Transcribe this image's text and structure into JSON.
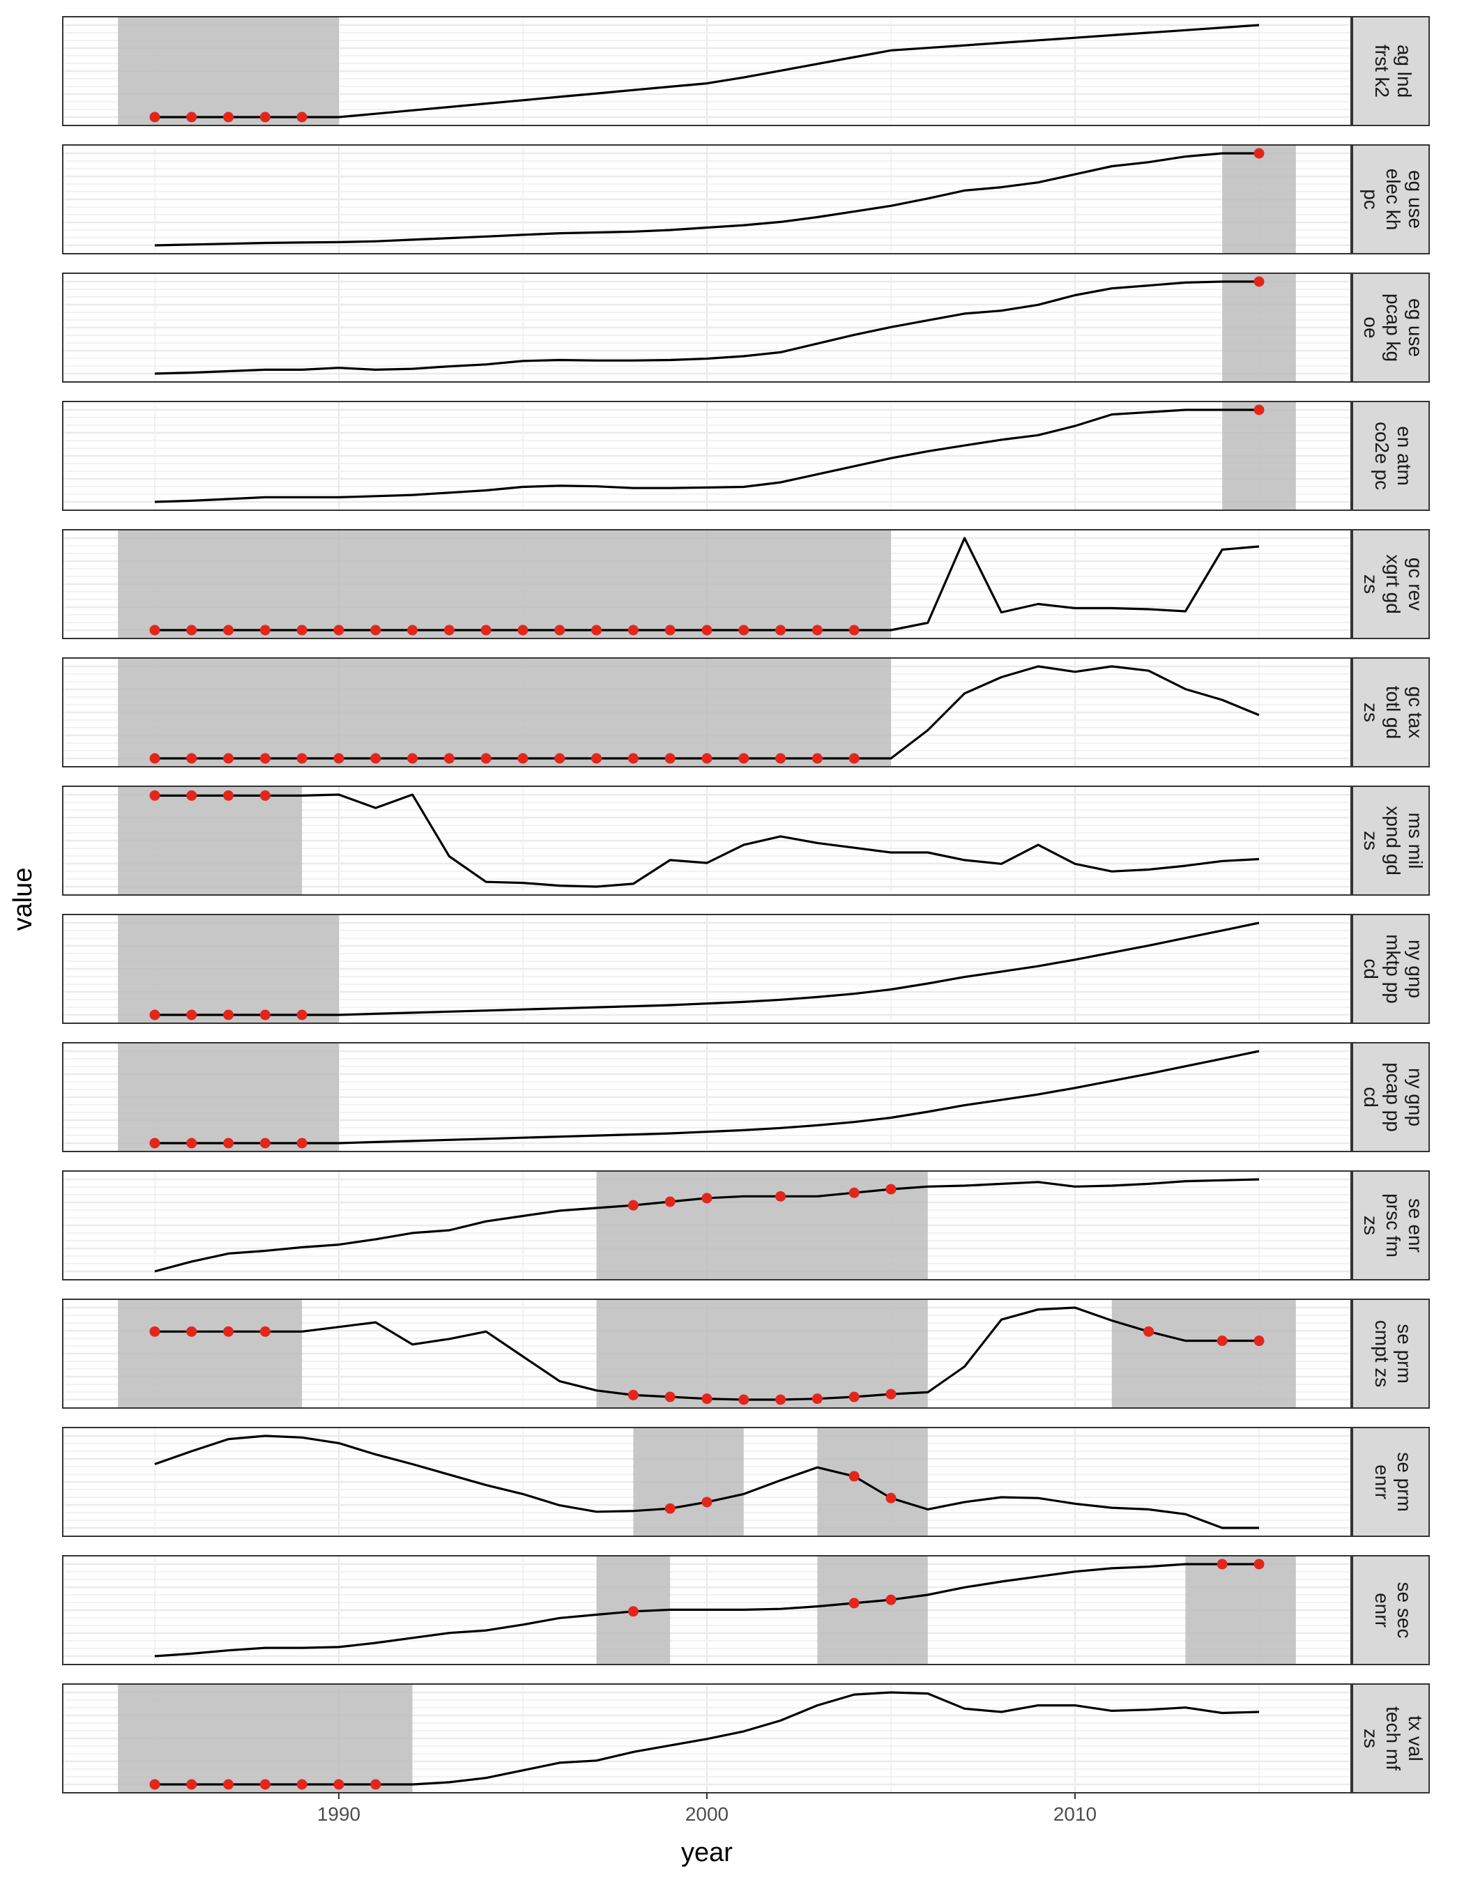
{
  "chart_data": {
    "type": "line",
    "xlabel": "year",
    "ylabel": "value",
    "xlim": [
      1982.5,
      2017.5
    ],
    "x_ticks": [
      1990,
      2000,
      2010
    ],
    "x_tick_labels": [
      "1990",
      "2000",
      "2010"
    ],
    "x": [
      1985,
      1986,
      1987,
      1988,
      1989,
      1990,
      1991,
      1992,
      1993,
      1994,
      1995,
      1996,
      1997,
      1998,
      1999,
      2000,
      2001,
      2002,
      2003,
      2004,
      2005,
      2006,
      2007,
      2008,
      2009,
      2010,
      2011,
      2012,
      2013,
      2014,
      2015
    ],
    "grid": true,
    "panels": [
      {
        "label": [
          "ag lnd",
          "frst k2"
        ],
        "values": [
          0,
          0,
          0,
          0,
          0,
          0,
          0.04,
          0.08,
          0.12,
          0.16,
          0.2,
          0.24,
          0.28,
          0.32,
          0.36,
          0.4,
          0.47,
          0.55,
          0.63,
          0.71,
          0.79,
          0.82,
          0.85,
          0.88,
          0.91,
          0.94,
          0.97,
          1.0,
          1.03,
          1.06,
          1.09
        ],
        "highlight_ranges": [
          [
            1984,
            1990
          ]
        ],
        "red_points": [
          1985,
          1986,
          1987,
          1988,
          1989
        ]
      },
      {
        "label": [
          "eg use",
          "elec kh",
          "pc"
        ],
        "values": [
          0.02,
          0.03,
          0.04,
          0.05,
          0.055,
          0.06,
          0.07,
          0.09,
          0.11,
          0.13,
          0.15,
          0.17,
          0.18,
          0.19,
          0.21,
          0.24,
          0.27,
          0.31,
          0.37,
          0.44,
          0.51,
          0.6,
          0.7,
          0.74,
          0.8,
          0.9,
          1.0,
          1.05,
          1.12,
          1.16,
          1.16
        ],
        "highlight_ranges": [
          [
            2014,
            2016
          ]
        ],
        "red_points": [
          2015
        ]
      },
      {
        "label": [
          "eg use",
          "pcap kg",
          "oe"
        ],
        "values": [
          0.02,
          0.03,
          0.045,
          0.06,
          0.06,
          0.08,
          0.06,
          0.07,
          0.095,
          0.115,
          0.15,
          0.16,
          0.155,
          0.155,
          0.16,
          0.175,
          0.2,
          0.24,
          0.33,
          0.42,
          0.5,
          0.57,
          0.64,
          0.67,
          0.73,
          0.83,
          0.9,
          0.93,
          0.96,
          0.97,
          0.97
        ],
        "highlight_ranges": [
          [
            2014,
            2016
          ]
        ],
        "red_points": [
          2015
        ]
      },
      {
        "label": [
          "en atm",
          "co2e pc"
        ],
        "values": [
          0.02,
          0.03,
          0.045,
          0.06,
          0.06,
          0.06,
          0.07,
          0.08,
          0.1,
          0.12,
          0.15,
          0.16,
          0.155,
          0.14,
          0.14,
          0.145,
          0.15,
          0.19,
          0.26,
          0.33,
          0.4,
          0.46,
          0.51,
          0.56,
          0.6,
          0.68,
          0.78,
          0.8,
          0.82,
          0.82,
          0.82
        ],
        "highlight_ranges": [
          [
            2014,
            2016
          ]
        ],
        "red_points": [
          2015
        ]
      },
      {
        "label": [
          "gc rev",
          "xgrt gd",
          "zs"
        ],
        "values": [
          0,
          0,
          0,
          0,
          0,
          0,
          0,
          0,
          0,
          0,
          0,
          0,
          0,
          0,
          0,
          0,
          0,
          0,
          0,
          0,
          0,
          0.07,
          0.88,
          0.17,
          0.25,
          0.21,
          0.21,
          0.2,
          0.18,
          0.77,
          0.8
        ],
        "highlight_ranges": [
          [
            1984,
            2005
          ]
        ],
        "red_points": [
          1985,
          1986,
          1987,
          1988,
          1989,
          1990,
          1991,
          1992,
          1993,
          1994,
          1995,
          1996,
          1997,
          1998,
          1999,
          2000,
          2001,
          2002,
          2003,
          2004
        ]
      },
      {
        "label": [
          "gc tax",
          "totl gd",
          "zs"
        ],
        "values": [
          0,
          0,
          0,
          0,
          0,
          0,
          0,
          0,
          0,
          0,
          0,
          0,
          0,
          0,
          0,
          0,
          0,
          0,
          0,
          0,
          0,
          0.26,
          0.6,
          0.75,
          0.85,
          0.8,
          0.85,
          0.81,
          0.64,
          0.54,
          0.4
        ],
        "highlight_ranges": [
          [
            1984,
            2005
          ]
        ],
        "red_points": [
          1985,
          1986,
          1987,
          1988,
          1989,
          1990,
          1991,
          1992,
          1993,
          1994,
          1995,
          1996,
          1997,
          1998,
          1999,
          2000,
          2001,
          2002,
          2003,
          2004
        ]
      },
      {
        "label": [
          "ms mil",
          "xpnd gd",
          "zs"
        ],
        "values": [
          1.0,
          1.0,
          1.0,
          1.0,
          1.0,
          1.01,
          0.87,
          1.01,
          0.36,
          0.09,
          0.08,
          0.05,
          0.04,
          0.07,
          0.32,
          0.29,
          0.48,
          0.57,
          0.5,
          0.45,
          0.4,
          0.4,
          0.32,
          0.28,
          0.48,
          0.28,
          0.2,
          0.22,
          0.26,
          0.31,
          0.33
        ],
        "highlight_ranges": [
          [
            1984,
            1989
          ]
        ],
        "red_points": [
          1985,
          1986,
          1987,
          1988
        ]
      },
      {
        "label": [
          "ny gnp",
          "mktp pp",
          "cd"
        ],
        "values": [
          0,
          0,
          0,
          0,
          0,
          0,
          0.01,
          0.02,
          0.03,
          0.04,
          0.05,
          0.06,
          0.07,
          0.08,
          0.09,
          0.105,
          0.12,
          0.14,
          0.165,
          0.195,
          0.235,
          0.29,
          0.35,
          0.4,
          0.45,
          0.51,
          0.575,
          0.64,
          0.71,
          0.78,
          0.85
        ],
        "highlight_ranges": [
          [
            1984,
            1990
          ]
        ],
        "red_points": [
          1985,
          1986,
          1987,
          1988,
          1989
        ]
      },
      {
        "label": [
          "ny gnp",
          "pcap pp",
          "cd"
        ],
        "values": [
          0,
          0,
          0,
          0,
          0,
          0,
          0.01,
          0.02,
          0.03,
          0.04,
          0.05,
          0.06,
          0.07,
          0.08,
          0.09,
          0.105,
          0.12,
          0.14,
          0.165,
          0.195,
          0.235,
          0.29,
          0.35,
          0.4,
          0.45,
          0.51,
          0.575,
          0.64,
          0.71,
          0.78,
          0.85
        ],
        "highlight_ranges": [
          [
            1984,
            1990
          ]
        ],
        "red_points": [
          1985,
          1986,
          1987,
          1988,
          1989
        ]
      },
      {
        "label": [
          "se enr",
          "prsc fm",
          "zs"
        ],
        "values": [
          0.0,
          0.11,
          0.2,
          0.23,
          0.27,
          0.3,
          0.36,
          0.43,
          0.46,
          0.56,
          0.62,
          0.68,
          0.71,
          0.74,
          0.78,
          0.82,
          0.84,
          0.84,
          0.84,
          0.88,
          0.92,
          0.95,
          0.96,
          0.98,
          1.0,
          0.95,
          0.96,
          0.98,
          1.01,
          1.02,
          1.03
        ],
        "highlight_ranges": [
          [
            1997,
            2006
          ]
        ],
        "red_points": [
          1998,
          1999,
          2000,
          2002,
          2004,
          2005
        ]
      },
      {
        "label": [
          "se prm",
          "cmpt zs"
        ],
        "values": [
          0.74,
          0.74,
          0.74,
          0.74,
          0.74,
          0.79,
          0.84,
          0.6,
          0.66,
          0.74,
          0.47,
          0.2,
          0.1,
          0.05,
          0.03,
          0.01,
          0.0,
          0.0,
          0.01,
          0.03,
          0.06,
          0.08,
          0.36,
          0.87,
          0.98,
          1.0,
          0.86,
          0.74,
          0.64,
          0.64,
          0.64
        ],
        "highlight_ranges": [
          [
            1984,
            1989
          ],
          [
            1997,
            2006
          ],
          [
            2011,
            2016
          ]
        ],
        "red_points": [
          1985,
          1986,
          1987,
          1988,
          1998,
          1999,
          2000,
          2001,
          2002,
          2003,
          2004,
          2005,
          2012,
          2014,
          2015
        ]
      },
      {
        "label": [
          "se prm",
          "enrr"
        ],
        "values": [
          0.67,
          0.83,
          0.98,
          1.02,
          1.0,
          0.93,
          0.79,
          0.67,
          0.54,
          0.41,
          0.3,
          0.16,
          0.08,
          0.09,
          0.12,
          0.2,
          0.3,
          0.47,
          0.63,
          0.52,
          0.25,
          0.11,
          0.2,
          0.26,
          0.25,
          0.18,
          0.13,
          0.11,
          0.05,
          -0.12,
          -0.12
        ],
        "highlight_ranges": [
          [
            1998,
            2001
          ],
          [
            2003,
            2006
          ]
        ],
        "red_points": [
          1999,
          2000,
          2004,
          2005
        ]
      },
      {
        "label": [
          "se sec",
          "enrr"
        ],
        "values": [
          0.0,
          0.03,
          0.07,
          0.1,
          0.1,
          0.11,
          0.16,
          0.22,
          0.28,
          0.31,
          0.38,
          0.46,
          0.5,
          0.54,
          0.56,
          0.56,
          0.56,
          0.57,
          0.6,
          0.64,
          0.68,
          0.74,
          0.83,
          0.9,
          0.96,
          1.02,
          1.06,
          1.08,
          1.11,
          1.11,
          1.11
        ],
        "highlight_ranges": [
          [
            1997,
            1999
          ],
          [
            2003,
            2006
          ],
          [
            2013,
            2016
          ]
        ],
        "red_points": [
          1998,
          2004,
          2005,
          2014,
          2015
        ]
      },
      {
        "label": [
          "tx val",
          "tech mf",
          "zs"
        ],
        "values": [
          0,
          0,
          0,
          0,
          0,
          0,
          0,
          0,
          0.02,
          0.06,
          0.13,
          0.2,
          0.22,
          0.3,
          0.36,
          0.42,
          0.49,
          0.59,
          0.73,
          0.83,
          0.85,
          0.84,
          0.7,
          0.67,
          0.73,
          0.73,
          0.68,
          0.69,
          0.71,
          0.66,
          0.67
        ],
        "highlight_ranges": [
          [
            1984,
            1992
          ]
        ],
        "red_points": [
          1985,
          1986,
          1987,
          1988,
          1989,
          1990,
          1991
        ]
      }
    ]
  },
  "colors": {
    "line": "#000000",
    "point": "#e3261c",
    "highlight": "#bdbdbd",
    "strip_fill": "#d9d9d9",
    "grid": "#ebebeb",
    "panel_border": "#333333"
  }
}
